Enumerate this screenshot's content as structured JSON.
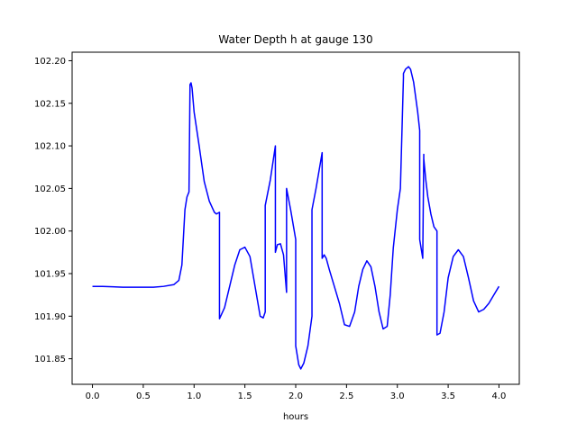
{
  "chart_data": {
    "type": "line",
    "title": "Water Depth h at gauge 130",
    "xlabel": "hours",
    "ylabel": "",
    "xlim": [
      -0.2,
      4.2
    ],
    "ylim": [
      101.82,
      102.21
    ],
    "xticks": [
      0.0,
      0.5,
      1.0,
      1.5,
      2.0,
      2.5,
      3.0,
      3.5,
      4.0
    ],
    "xtick_labels": [
      "0.0",
      "0.5",
      "1.0",
      "1.5",
      "2.0",
      "2.5",
      "3.0",
      "3.5",
      "4.0"
    ],
    "yticks": [
      101.85,
      101.9,
      101.95,
      102.0,
      102.05,
      102.1,
      102.15,
      102.2
    ],
    "ytick_labels": [
      "101.85",
      "101.90",
      "101.95",
      "102.00",
      "102.05",
      "102.10",
      "102.15",
      "102.20"
    ],
    "grid": false,
    "legend": false,
    "series": [
      {
        "color": "#0000ff",
        "x": [
          0.0,
          0.1,
          0.3,
          0.5,
          0.6,
          0.7,
          0.8,
          0.85,
          0.88,
          0.91,
          0.93,
          0.95,
          0.96,
          0.96,
          0.97,
          0.98,
          1.0,
          1.05,
          1.1,
          1.15,
          1.2,
          1.22,
          1.25,
          1.25,
          1.3,
          1.35,
          1.4,
          1.45,
          1.5,
          1.55,
          1.6,
          1.65,
          1.68,
          1.7,
          1.7,
          1.75,
          1.8,
          1.8,
          1.82,
          1.85,
          1.88,
          1.91,
          1.91,
          1.95,
          2.0,
          2.0,
          2.03,
          2.05,
          2.08,
          2.12,
          2.16,
          2.16,
          2.2,
          2.25,
          2.26,
          2.26,
          2.28,
          2.3,
          2.33,
          2.38,
          2.43,
          2.48,
          2.53,
          2.58,
          2.62,
          2.66,
          2.7,
          2.74,
          2.78,
          2.82,
          2.86,
          2.9,
          2.93,
          2.96,
          3.0,
          3.03,
          3.06,
          3.06,
          3.08,
          3.11,
          3.13,
          3.16,
          3.2,
          3.22,
          3.22,
          3.25,
          3.26,
          3.26,
          3.28,
          3.3,
          3.33,
          3.36,
          3.39,
          3.39,
          3.42,
          3.46,
          3.5,
          3.55,
          3.6,
          3.65,
          3.7,
          3.75,
          3.8,
          3.85,
          3.9,
          3.95,
          4.0
        ],
        "y": [
          101.935,
          101.935,
          101.934,
          101.934,
          101.934,
          101.935,
          101.937,
          101.942,
          101.96,
          102.025,
          102.04,
          102.046,
          102.17,
          102.172,
          102.174,
          102.168,
          102.14,
          102.1,
          102.058,
          102.035,
          102.022,
          102.02,
          102.022,
          101.897,
          101.91,
          101.935,
          101.96,
          101.978,
          101.981,
          101.97,
          101.935,
          101.9,
          101.898,
          101.905,
          102.03,
          102.06,
          102.1,
          101.975,
          101.984,
          101.985,
          101.972,
          101.928,
          102.05,
          102.025,
          101.99,
          101.865,
          101.843,
          101.838,
          101.845,
          101.865,
          101.9,
          102.025,
          102.05,
          102.085,
          102.092,
          101.968,
          101.972,
          101.968,
          101.955,
          101.935,
          101.915,
          101.89,
          101.888,
          101.905,
          101.935,
          101.955,
          101.965,
          101.958,
          101.935,
          101.905,
          101.885,
          101.888,
          101.925,
          101.98,
          102.025,
          102.05,
          102.18,
          102.185,
          102.19,
          102.193,
          102.19,
          102.175,
          102.14,
          102.118,
          101.99,
          101.968,
          102.09,
          102.085,
          102.06,
          102.04,
          102.02,
          102.005,
          102.0,
          101.878,
          101.88,
          101.905,
          101.945,
          101.97,
          101.978,
          101.97,
          101.945,
          101.918,
          101.905,
          101.908,
          101.915,
          101.925,
          101.935
        ]
      }
    ]
  }
}
